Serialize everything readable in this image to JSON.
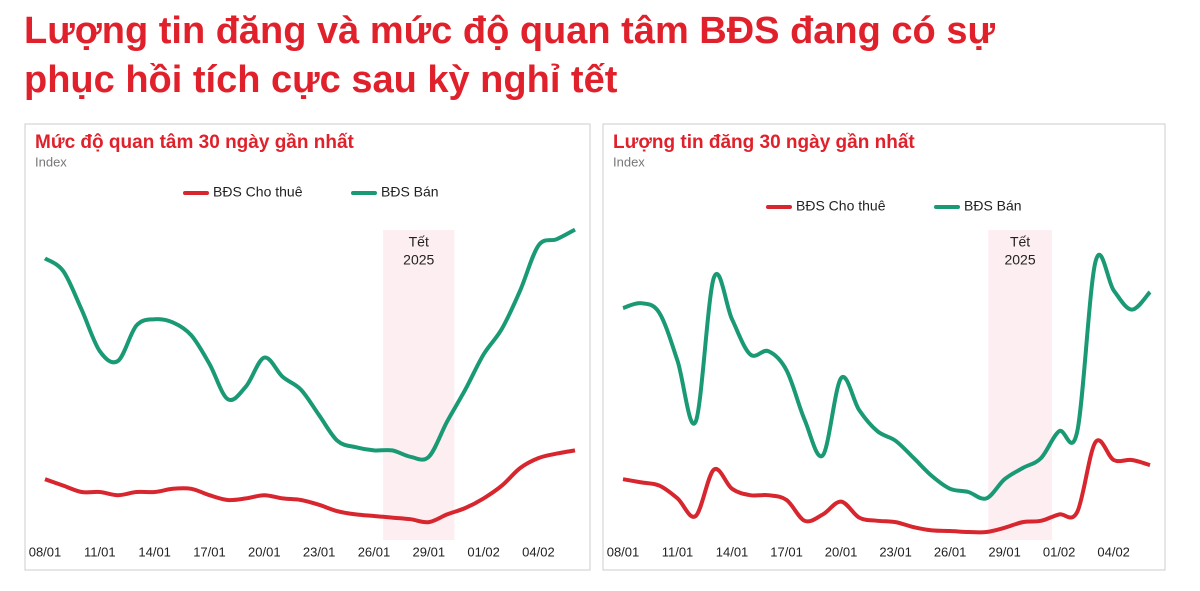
{
  "title": [
    "Lượng tin đăng và mức độ quan tâm BĐS đang có sự",
    "phục hồi tích cực sau kỳ nghỉ tết"
  ],
  "chart_data": [
    {
      "type": "line",
      "title": "Mức độ quan tâm 30 ngày gần nhất",
      "y_label": "Index",
      "categories": [
        "08/01",
        null,
        null,
        "11/01",
        null,
        null,
        "14/01",
        null,
        null,
        "17/01",
        null,
        null,
        "20/01",
        null,
        null,
        "23/01",
        null,
        null,
        "26/01",
        null,
        null,
        "29/01",
        null,
        null,
        "01/02",
        null,
        null,
        "04/02",
        null,
        null
      ],
      "series": [
        {
          "name": "BĐS Cho thuê",
          "color": "#d7262e",
          "values": [
            19,
            17,
            15,
            15,
            14,
            15,
            15,
            16,
            16,
            14,
            12.5,
            13,
            14,
            13,
            12.5,
            11,
            9,
            8,
            7.5,
            7,
            6.5,
            5.6,
            8,
            10,
            13,
            17,
            22.5,
            25.6,
            27,
            28
          ]
        },
        {
          "name": "BĐS Bán",
          "color": "#1a9a74",
          "values": [
            88,
            84,
            72,
            59,
            56,
            67,
            69,
            68,
            64,
            55,
            44,
            48,
            57,
            51,
            47,
            39,
            31,
            29,
            28,
            28,
            26,
            26,
            37,
            47,
            58,
            66,
            78,
            92,
            94,
            97
          ]
        }
      ],
      "highlight": {
        "label": [
          "Tết",
          "2025"
        ],
        "start": 18.5,
        "end": 22.4
      },
      "ylim": [
        0,
        100
      ],
      "legend": "top"
    },
    {
      "type": "line",
      "title": "Lượng tin đăng 30 ngày gần nhất",
      "y_label": "Index",
      "categories": [
        "08/01",
        null,
        null,
        "11/01",
        null,
        null,
        "14/01",
        null,
        null,
        "17/01",
        null,
        null,
        "20/01",
        null,
        null,
        "23/01",
        null,
        null,
        "26/01",
        null,
        null,
        "29/01",
        null,
        null,
        "01/02",
        null,
        null,
        "04/02",
        null,
        null
      ],
      "series": [
        {
          "name": "BĐS Cho thuê",
          "color": "#d7262e",
          "values": [
            19,
            18,
            17,
            13,
            7.5,
            22,
            16,
            14,
            14,
            12.5,
            6,
            8,
            12,
            7,
            6,
            5.6,
            4,
            3,
            2.8,
            2.5,
            2.5,
            3.8,
            5.6,
            6,
            8,
            8.8,
            30.6,
            25,
            25,
            23.4
          ]
        },
        {
          "name": "BĐS Bán",
          "color": "#1a9a74",
          "values": [
            72.5,
            74,
            71,
            56,
            37,
            82,
            69,
            58,
            59,
            53,
            37.5,
            26.5,
            50.6,
            40.6,
            34,
            31,
            25.6,
            20,
            16,
            15,
            13,
            19,
            22.5,
            25.6,
            34,
            34,
            87,
            78,
            72,
            77.5
          ]
        }
      ],
      "highlight": {
        "label": [
          "Tết",
          "2025"
        ],
        "start": 20.1,
        "end": 23.6
      },
      "ylim": [
        0,
        100
      ],
      "legend": "top"
    }
  ]
}
